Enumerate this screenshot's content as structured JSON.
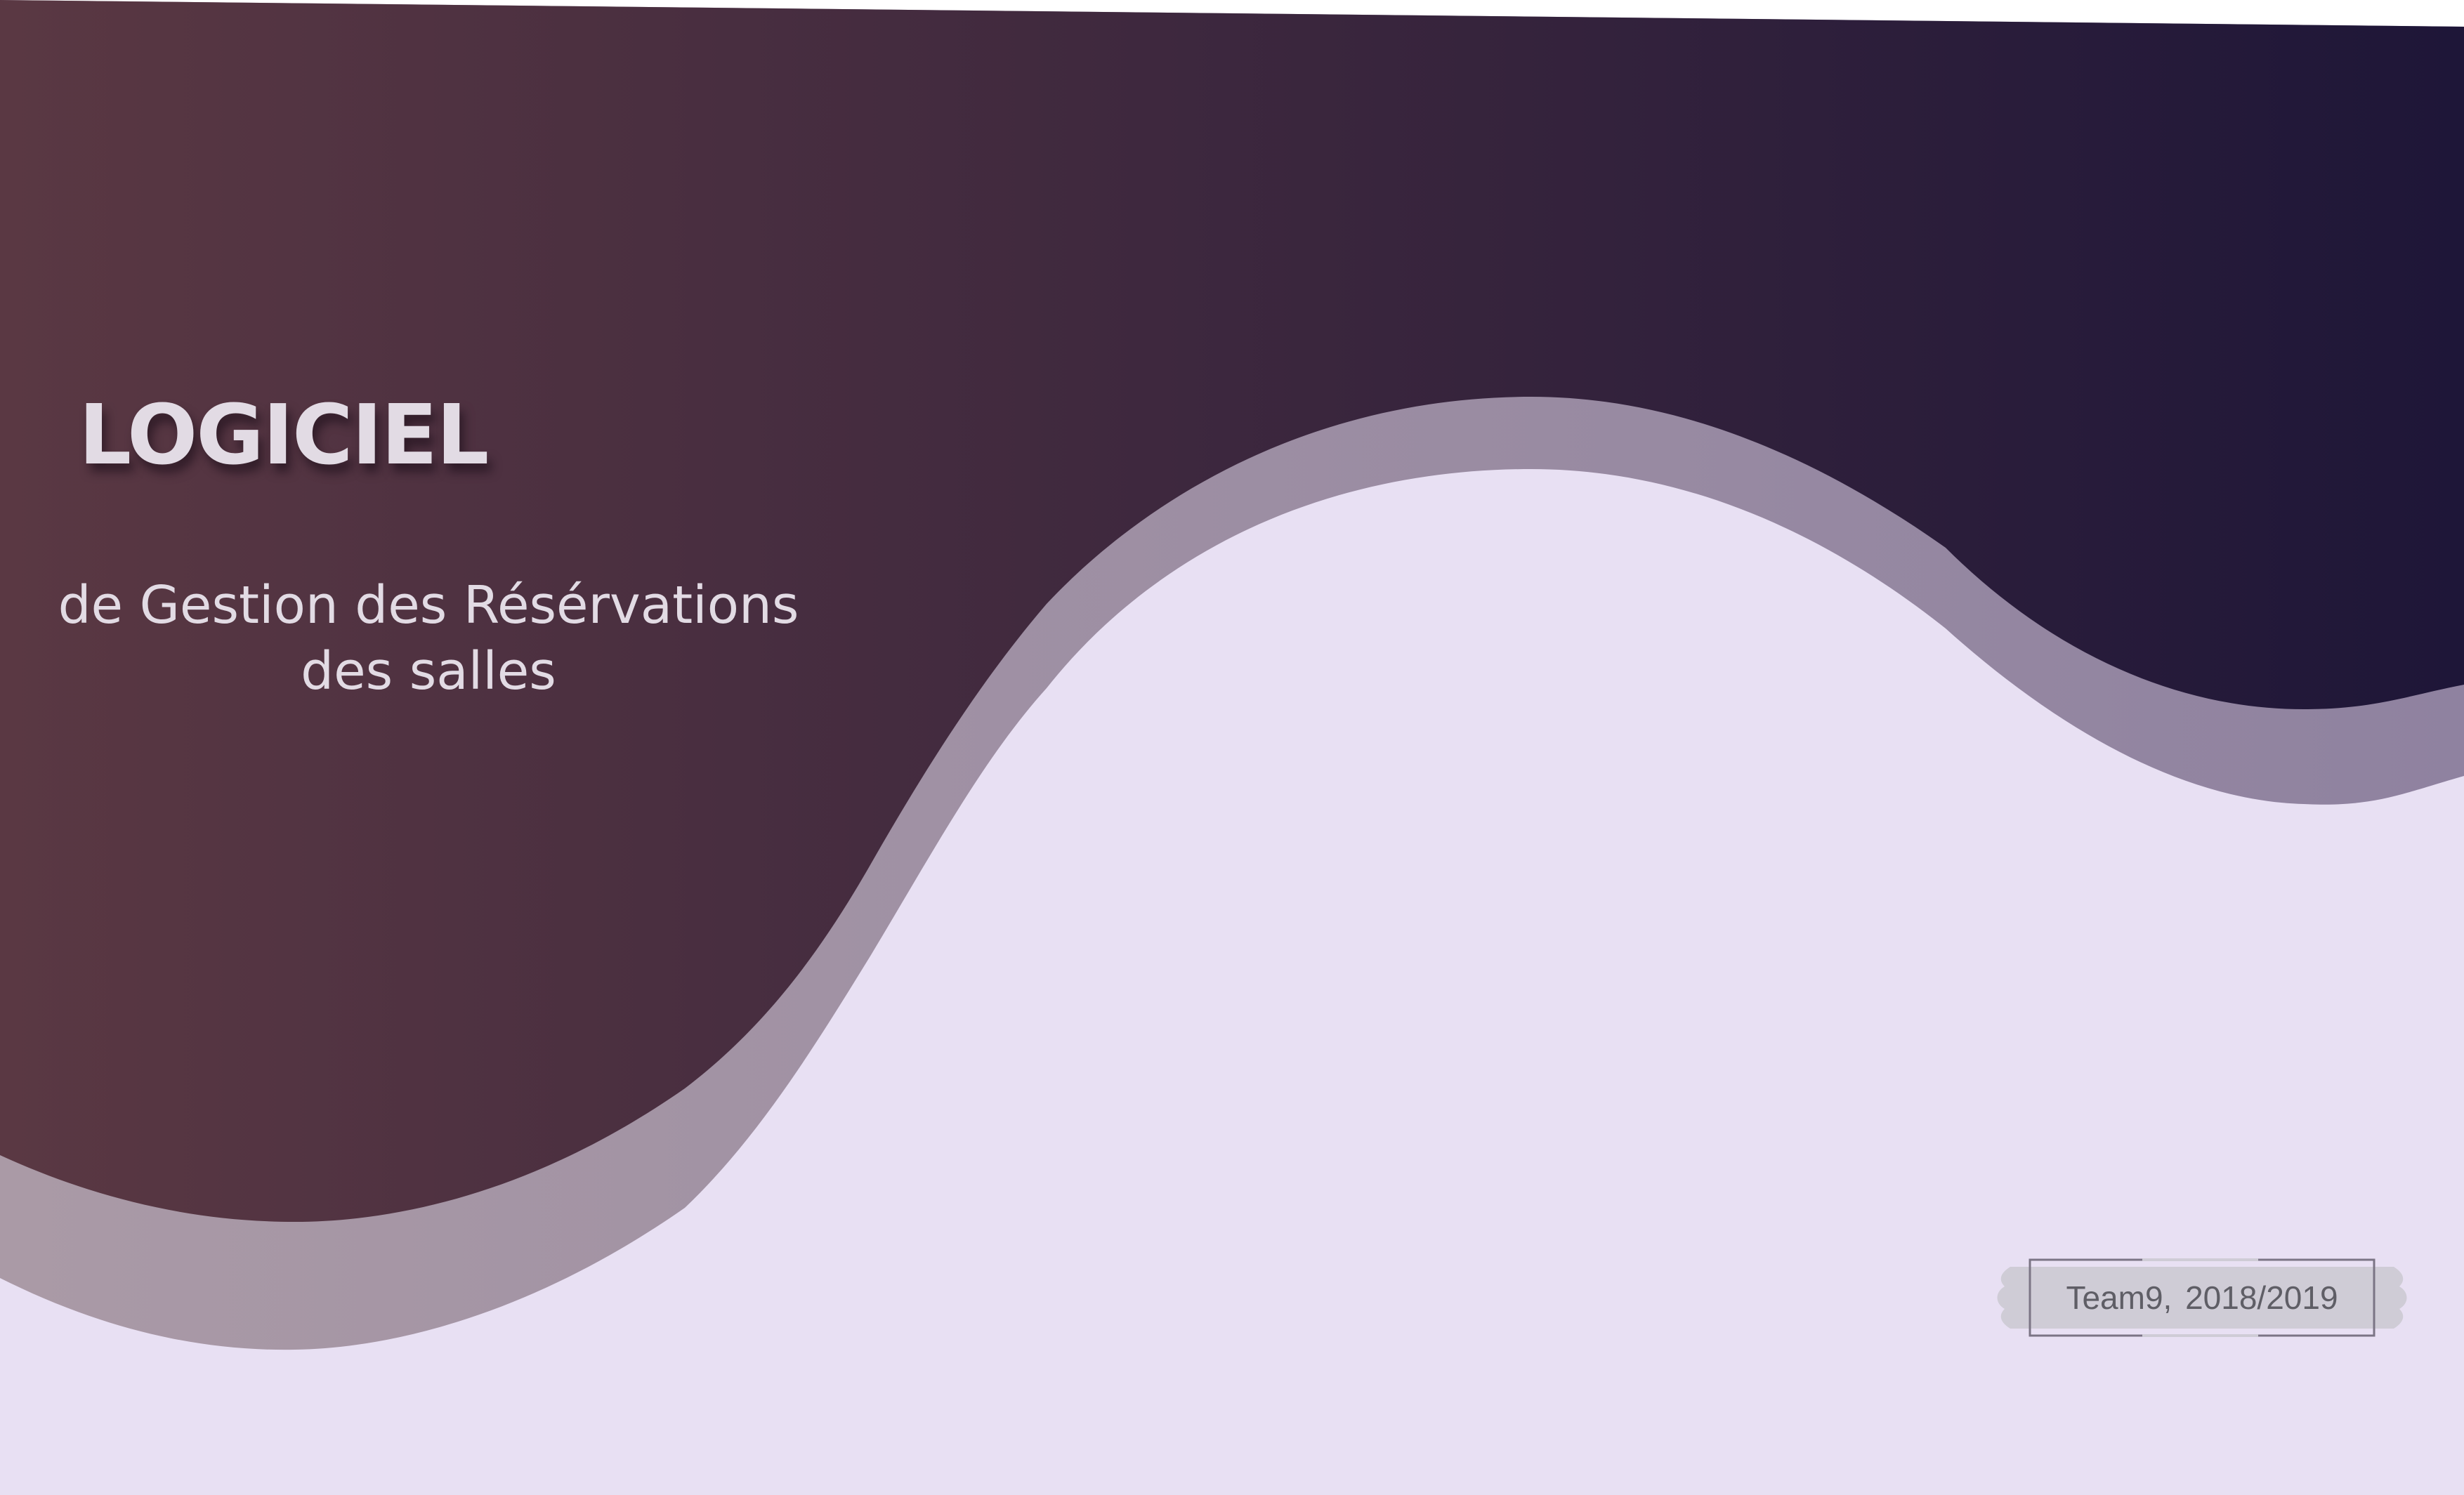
{
  "slide": {
    "title": "LOGICIEL",
    "subtitle": "de Gestion des Résérvations\ndes salles",
    "badge_label": "Team9,  2018/2019"
  },
  "colors": {
    "header_gradient_start": "#5a3843",
    "header_gradient_end": "#1e1638",
    "wave_shadow_start": "#aa9aa6",
    "wave_shadow_end": "#8f82a0",
    "body_background": "#e8e0f3",
    "text_light": "#e2dbe4",
    "badge_fill": "#cfccd6",
    "badge_border": "#7b7585",
    "badge_text": "#5f5e66"
  }
}
